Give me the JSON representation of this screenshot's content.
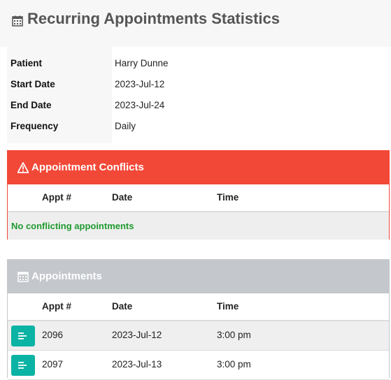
{
  "page": {
    "title": "Recurring Appointments Statistics",
    "title_icon": "calendar-icon"
  },
  "details": [
    {
      "label": "Patient",
      "value": "Harry Dunne"
    },
    {
      "label": "Start Date",
      "value": "2023-Jul-12"
    },
    {
      "label": "End Date",
      "value": "2023-Jul-24"
    },
    {
      "label": "Frequency",
      "value": "Daily"
    }
  ],
  "conflicts": {
    "title": "Appointment Conflicts",
    "icon": "warning-icon",
    "color": "#f24837",
    "columns": [
      "Appt #",
      "Date",
      "Time"
    ],
    "empty_message": "No conflicting appointments",
    "empty_color": "#1f9a2f"
  },
  "appointments": {
    "title": "Appointments",
    "icon": "calendar-icon",
    "color": "#c4c7cc",
    "columns": [
      "Appt #",
      "Date",
      "Time"
    ],
    "button_color": "#0bb3a4",
    "rows": [
      {
        "appt": "2096",
        "date": "2023-Jul-12",
        "time": "3:00 pm"
      },
      {
        "appt": "2097",
        "date": "2023-Jul-13",
        "time": "3:00 pm"
      }
    ]
  }
}
